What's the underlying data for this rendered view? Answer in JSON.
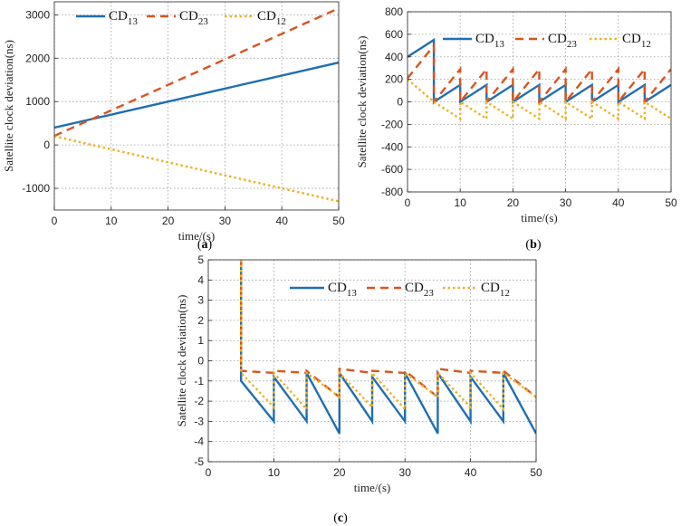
{
  "colors": {
    "cd13": "#1f6fb2",
    "cd23": "#d9541e",
    "cd12": "#edb120"
  },
  "chart_data": [
    {
      "panel": "a",
      "type": "line",
      "xlabel": "time/(s)",
      "ylabel": "Satellite clock deviation(ns)",
      "xlim": [
        0,
        50
      ],
      "ylim": [
        -1500,
        3300
      ],
      "xticks": [
        0,
        10,
        20,
        30,
        40,
        50
      ],
      "yticks": [
        -1000,
        0,
        1000,
        2000,
        3000
      ],
      "grid": true,
      "legend": "top",
      "series": [
        {
          "name": "CD13",
          "base": "CD",
          "sub": "13",
          "style": "solid",
          "color": "#1f6fb2",
          "x": [
            0,
            50
          ],
          "y": [
            400,
            1900
          ]
        },
        {
          "name": "CD23",
          "base": "CD",
          "sub": "23",
          "style": "dashed",
          "color": "#d9541e",
          "x": [
            0,
            50
          ],
          "y": [
            210,
            3150
          ]
        },
        {
          "name": "CD12",
          "base": "CD",
          "sub": "12",
          "style": "dotted",
          "color": "#edb120",
          "x": [
            0,
            50
          ],
          "y": [
            200,
            -1300
          ]
        }
      ]
    },
    {
      "panel": "b",
      "type": "line",
      "xlabel": "time/(s)",
      "ylabel": "Satellite clock deviation(ns)",
      "xlim": [
        0,
        50
      ],
      "ylim": [
        -800,
        800
      ],
      "xticks": [
        0,
        10,
        20,
        30,
        40,
        50
      ],
      "yticks": [
        -800,
        -600,
        -400,
        -200,
        0,
        200,
        400,
        600,
        800
      ],
      "grid": true,
      "legend": "top-right",
      "series": [
        {
          "name": "CD13",
          "base": "CD",
          "sub": "13",
          "style": "solid",
          "color": "#1f6fb2",
          "x": [
            0,
            5,
            5,
            10,
            10,
            15,
            15,
            20,
            20,
            25,
            25,
            30,
            30,
            35,
            35,
            40,
            40,
            45,
            45,
            50
          ],
          "y": [
            400,
            550,
            0,
            150,
            0,
            150,
            0,
            150,
            0,
            150,
            0,
            150,
            0,
            150,
            0,
            150,
            0,
            150,
            0,
            150
          ]
        },
        {
          "name": "CD23",
          "base": "CD",
          "sub": "23",
          "style": "dashed",
          "color": "#d9541e",
          "x": [
            0,
            5,
            5,
            10,
            10,
            15,
            15,
            20,
            20,
            25,
            25,
            30,
            30,
            35,
            35,
            40,
            40,
            45,
            45,
            50
          ],
          "y": [
            210,
            500,
            0,
            290,
            0,
            290,
            0,
            290,
            0,
            290,
            0,
            290,
            0,
            290,
            0,
            290,
            0,
            290,
            0,
            290
          ]
        },
        {
          "name": "CD12",
          "base": "CD",
          "sub": "12",
          "style": "dotted",
          "color": "#edb120",
          "x": [
            0,
            5,
            5,
            10,
            10,
            15,
            15,
            20,
            20,
            25,
            25,
            30,
            30,
            35,
            35,
            40,
            40,
            45,
            45,
            50
          ],
          "y": [
            200,
            0,
            0,
            -150,
            0,
            -150,
            0,
            -150,
            0,
            -150,
            0,
            -150,
            0,
            -150,
            0,
            -150,
            0,
            -150,
            0,
            -150
          ]
        }
      ]
    },
    {
      "panel": "c",
      "type": "line",
      "xlabel": "time/(s)",
      "ylabel": "Satellite clock deviation(ns)",
      "xlim": [
        0,
        50
      ],
      "ylim": [
        -5,
        5
      ],
      "xticks": [
        0,
        10,
        20,
        30,
        40,
        50
      ],
      "yticks": [
        -5,
        -4,
        -3,
        -2,
        -1,
        0,
        1,
        2,
        3,
        4,
        5
      ],
      "grid": true,
      "legend": "top-right",
      "series": [
        {
          "name": "CD13",
          "base": "CD",
          "sub": "13",
          "style": "solid",
          "color": "#1f6fb2",
          "x": [
            5,
            5,
            10,
            10,
            15,
            15,
            20,
            20,
            25,
            25,
            30,
            30,
            35,
            35,
            40,
            40,
            45,
            45,
            50
          ],
          "y": [
            5,
            -1,
            -3,
            -0.8,
            -3,
            -0.6,
            -3.6,
            -0.6,
            -3,
            -0.8,
            -3,
            -0.6,
            -3.6,
            -0.6,
            -3,
            -0.8,
            -3,
            -0.6,
            -3.6
          ]
        },
        {
          "name": "CD23",
          "base": "CD",
          "sub": "23",
          "style": "dashed",
          "color": "#d9541e",
          "x": [
            5,
            5,
            10,
            10,
            15,
            15,
            20,
            20,
            25,
            25,
            30,
            30,
            35,
            35,
            40,
            40,
            45,
            45,
            50
          ],
          "y": [
            5,
            -0.5,
            -0.6,
            -0.5,
            -0.6,
            -0.5,
            -1.8,
            -0.4,
            -0.6,
            -0.5,
            -0.6,
            -0.5,
            -1.8,
            -0.4,
            -0.6,
            -0.5,
            -0.6,
            -0.5,
            -1.8
          ]
        },
        {
          "name": "CD12",
          "base": "CD",
          "sub": "12",
          "style": "dotted",
          "color": "#edb120",
          "x": [
            5,
            5,
            10,
            10,
            15,
            15,
            20,
            20,
            25,
            25,
            30,
            30,
            35,
            35,
            40,
            40,
            45,
            45,
            50
          ],
          "y": [
            5,
            -0.6,
            -2.3,
            -0.6,
            -2.4,
            -0.6,
            -1.8,
            -0.6,
            -2.3,
            -0.6,
            -2.4,
            -0.6,
            -1.8,
            -0.6,
            -2.3,
            -0.6,
            -2.4,
            -0.6,
            -1.8
          ]
        }
      ]
    }
  ],
  "panel_labels": [
    {
      "open": "(",
      "letter": "a",
      "close": ")"
    },
    {
      "open": "(",
      "letter": "b",
      "close": ")"
    },
    {
      "open": "(",
      "letter": "c",
      "close": ")"
    }
  ]
}
